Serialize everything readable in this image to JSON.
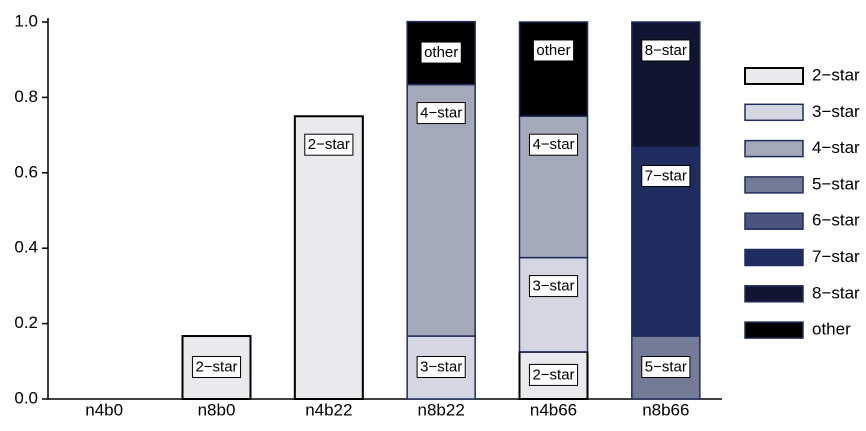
{
  "chart_data": {
    "type": "stacked-bar",
    "categories": [
      "n4b0",
      "n8b0",
      "n4b22",
      "n8b22",
      "n4b66",
      "n8b66"
    ],
    "series": [
      {
        "name": "2−star",
        "color": "#e9eaee",
        "values": [
          null,
          0.167,
          0.75,
          null,
          0.125,
          null
        ]
      },
      {
        "name": "3−star",
        "color": "#d4d7e2",
        "values": [
          null,
          null,
          null,
          0.167,
          0.25,
          null
        ]
      },
      {
        "name": "4−star",
        "color": "#a4a9b9",
        "values": [
          null,
          null,
          null,
          0.667,
          0.375,
          null
        ]
      },
      {
        "name": "5−star",
        "color": "#737b97",
        "values": [
          null,
          null,
          null,
          null,
          null,
          0.167
        ]
      },
      {
        "name": "6−star",
        "color": "#4a5680",
        "values": [
          null,
          null,
          null,
          null,
          null,
          null
        ]
      },
      {
        "name": "7−star",
        "color": "#1f2d5e",
        "values": [
          null,
          null,
          null,
          null,
          null,
          0.5
        ]
      },
      {
        "name": "8−star",
        "color": "#101632",
        "values": [
          null,
          null,
          null,
          null,
          null,
          0.333
        ]
      },
      {
        "name": "other",
        "color": "#000000",
        "values": [
          null,
          null,
          null,
          0.167,
          0.25,
          null
        ]
      }
    ],
    "ylim": [
      0,
      1
    ],
    "yticks": [
      {
        "value": 0,
        "label": "0.0"
      },
      0.2,
      0.4,
      0.6,
      0.8,
      {
        "value": 1,
        "label": "1.0"
      }
    ],
    "legend": "right"
  }
}
